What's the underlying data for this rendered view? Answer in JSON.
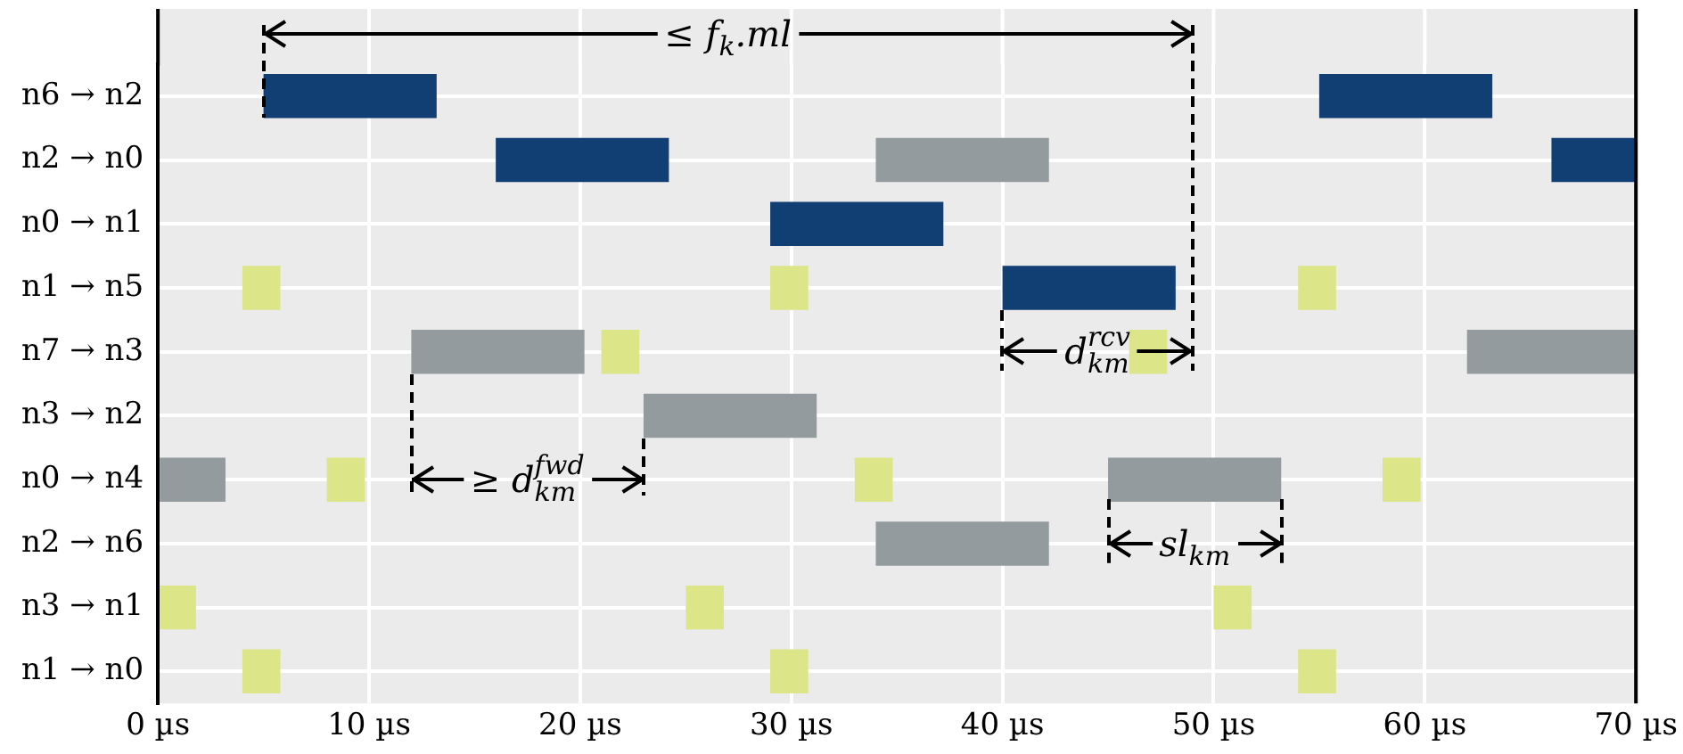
{
  "chart_data": {
    "type": "bar",
    "orientation": "horizontal",
    "categories": [
      "n6 → n2",
      "n2 → n0",
      "n0 → n1",
      "n1 → n5",
      "n7 → n3",
      "n3 → n2",
      "n0 → n4",
      "n2 → n6",
      "n3 → n1",
      "n1 → n0"
    ],
    "series": [
      {
        "color": "#123f73",
        "base": [
          5,
          16,
          29,
          40,
          null,
          null,
          null,
          null,
          null,
          null
        ],
        "values": [
          8.2,
          8.2,
          8.2,
          8.2,
          null,
          null,
          null,
          null,
          null,
          null
        ]
      },
      {
        "color": "#123f73",
        "base": [
          55,
          66,
          null,
          null,
          null,
          null,
          null,
          null,
          null,
          null
        ],
        "values": [
          8.2,
          4,
          null,
          null,
          null,
          null,
          null,
          null,
          null,
          null
        ]
      },
      {
        "color": "#949b9f",
        "base": [
          null,
          34,
          null,
          null,
          12,
          23,
          0,
          34,
          null,
          null
        ],
        "values": [
          null,
          8.2,
          null,
          null,
          8.2,
          8.2,
          3.2,
          8.2,
          null,
          null
        ]
      },
      {
        "color": "#949b9f",
        "base": [
          null,
          null,
          null,
          null,
          62,
          null,
          45,
          null,
          null,
          null
        ],
        "values": [
          null,
          null,
          null,
          null,
          8,
          null,
          8.2,
          null,
          null,
          null
        ]
      },
      {
        "color": "#dce588",
        "base": [
          null,
          null,
          null,
          4,
          21,
          null,
          8,
          null,
          0,
          4
        ],
        "values": [
          null,
          null,
          null,
          1.8,
          1.8,
          null,
          1.8,
          null,
          1.8,
          1.8
        ]
      },
      {
        "color": "#dce588",
        "base": [
          null,
          null,
          null,
          29,
          46,
          null,
          33,
          null,
          25,
          29
        ],
        "values": [
          null,
          null,
          null,
          1.8,
          1.8,
          null,
          1.8,
          null,
          1.8,
          1.8
        ]
      },
      {
        "color": "#dce588",
        "base": [
          null,
          null,
          null,
          54,
          null,
          null,
          58,
          null,
          50,
          54
        ],
        "values": [
          null,
          null,
          null,
          1.8,
          null,
          null,
          1.8,
          null,
          1.8,
          1.8
        ]
      }
    ],
    "xlim": [
      0,
      70
    ],
    "xticks": [
      {
        "value": 0,
        "label": "0 µs"
      },
      {
        "value": 10,
        "label": "10 µs"
      },
      {
        "value": 20,
        "label": "20 µs"
      },
      {
        "value": 30,
        "label": "30 µs"
      },
      {
        "value": 40,
        "label": "40 µs"
      },
      {
        "value": 50,
        "label": "50 µs"
      },
      {
        "value": 60,
        "label": "60 µs"
      },
      {
        "value": 70,
        "label": "70 µs"
      }
    ],
    "grid": true,
    "annotations": [
      "≤ f$_{k}$.ml",
      "d$^{rcv}$$_{km}$",
      "≥ d$^{fwd}$$_{km}$",
      "sl$_{km}$"
    ]
  }
}
